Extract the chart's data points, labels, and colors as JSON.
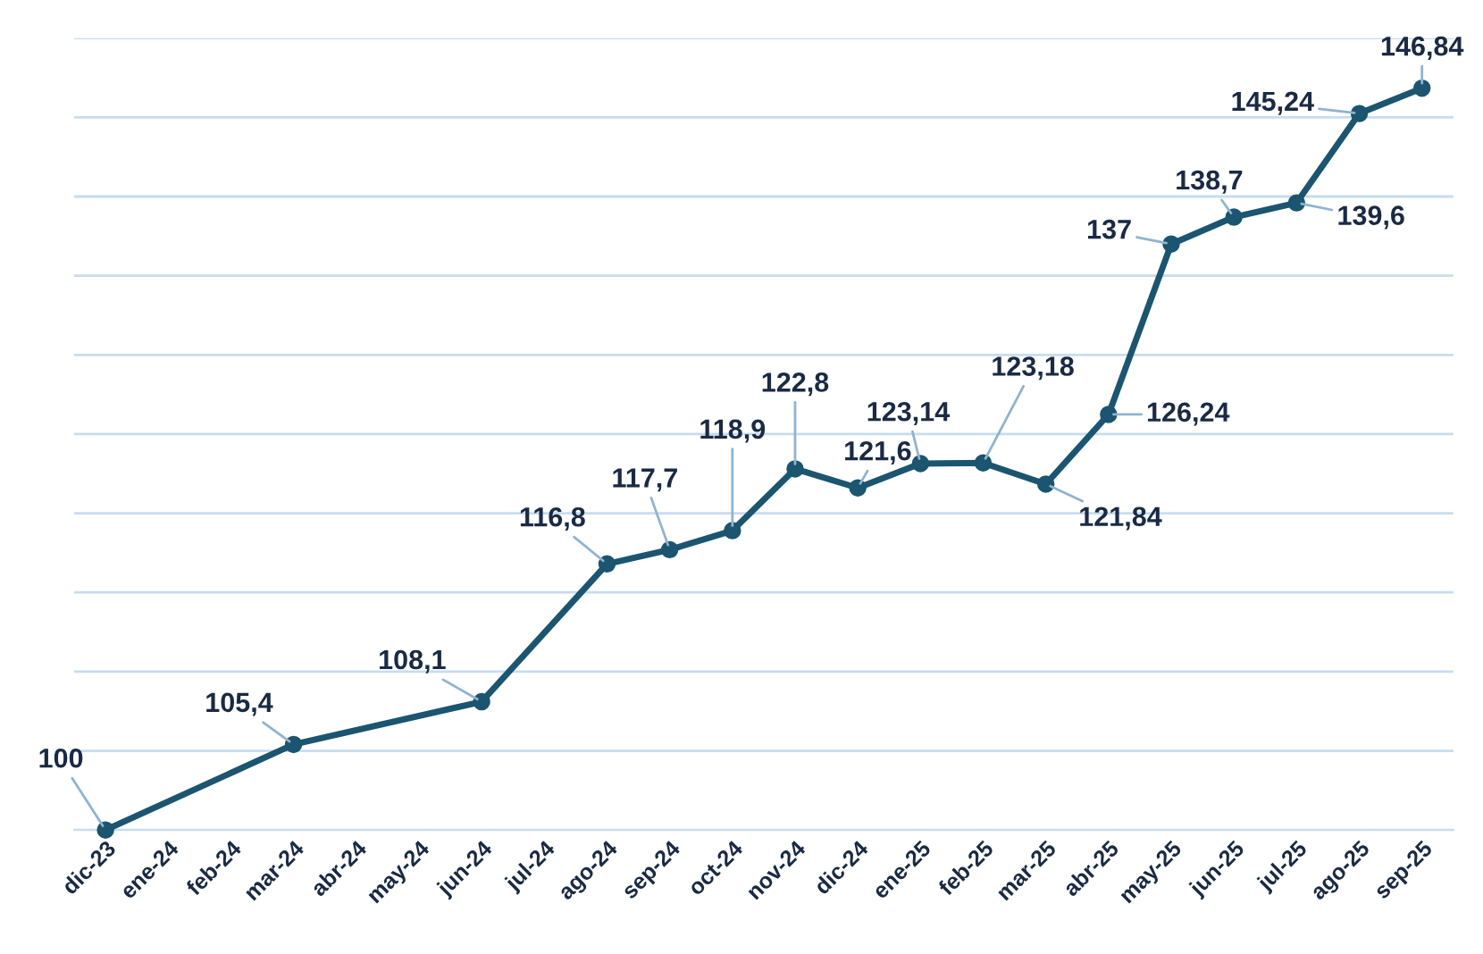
{
  "chart_data": {
    "type": "line",
    "categories": [
      "dic-23",
      "ene-24",
      "feb-24",
      "mar-24",
      "abr-24",
      "may-24",
      "jun-24",
      "jul-24",
      "ago-24",
      "sep-24",
      "oct-24",
      "nov-24",
      "dic-24",
      "ene-25",
      "feb-25",
      "mar-25",
      "abr-25",
      "may-25",
      "jun-25",
      "jul-25",
      "ago-25",
      "sep-25"
    ],
    "series": [
      {
        "color": "#1b5570",
        "values": [
          100,
          null,
          null,
          105.4,
          null,
          null,
          108.1,
          null,
          116.8,
          117.7,
          118.9,
          122.8,
          121.6,
          123.14,
          123.18,
          121.84,
          126.24,
          137,
          138.7,
          139.6,
          145.24,
          146.84
        ],
        "value_labels": [
          "100",
          null,
          null,
          "105,4",
          null,
          null,
          "108,1",
          null,
          "116,8",
          "117,7",
          "118,9",
          "122,8",
          "121,6",
          "123,14",
          "123,18",
          "121,84",
          "126,24",
          "137",
          "138,7",
          "139,6",
          "145,24",
          "146,84"
        ]
      }
    ],
    "ylim": [
      100,
      150
    ],
    "yticks": [
      {
        "value": 100,
        "label": null
      },
      {
        "value": 105,
        "label": null
      },
      {
        "value": 110,
        "label": null
      },
      {
        "value": 115,
        "label": null
      },
      {
        "value": 120,
        "label": null
      },
      {
        "value": 125,
        "label": null
      },
      {
        "value": 130,
        "label": null
      },
      {
        "value": 135,
        "label": null
      },
      {
        "value": 140,
        "label": null
      },
      {
        "value": 145,
        "label": null
      },
      {
        "value": 150,
        "label": null
      }
    ],
    "grid": "y",
    "marker": "circle",
    "line_style": "solid",
    "tick_labels": "x"
  }
}
